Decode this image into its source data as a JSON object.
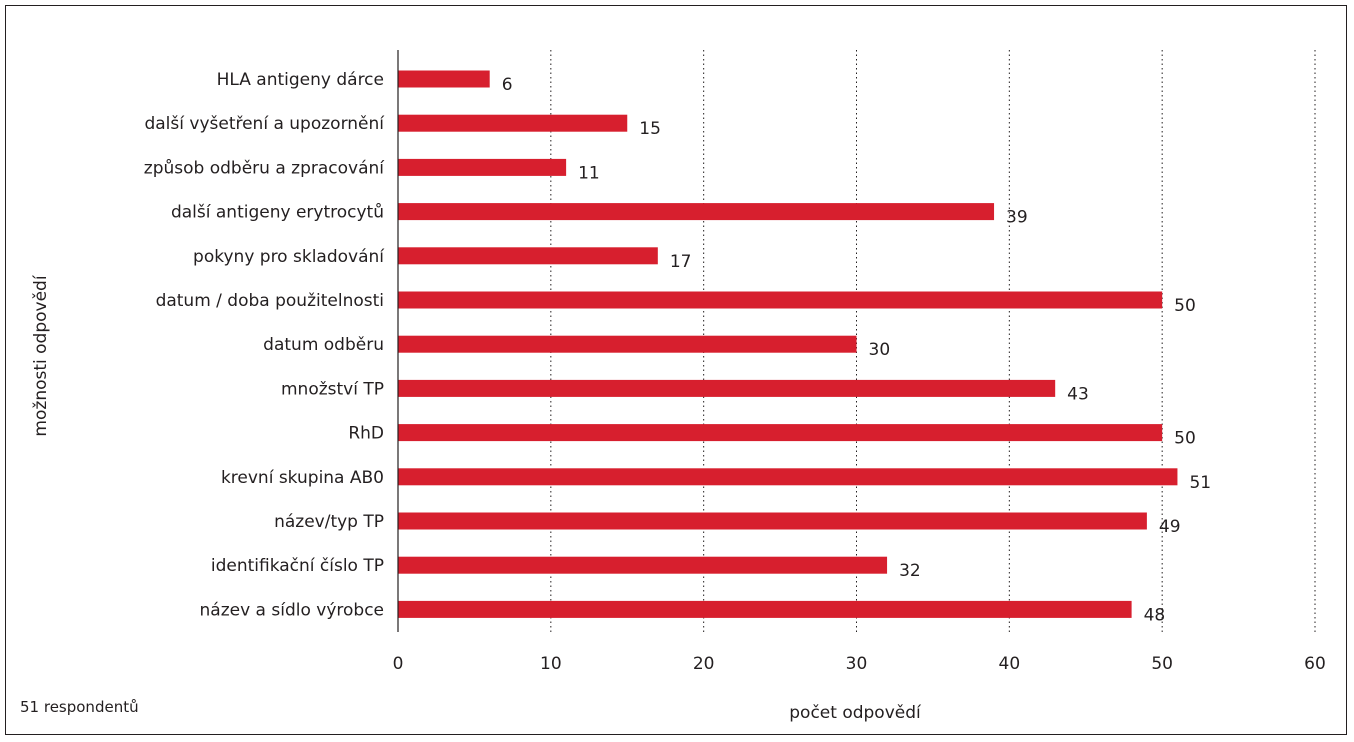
{
  "chart_data": {
    "type": "bar",
    "orientation": "horizontal",
    "categories": [
      "HLA antigeny dárce",
      "další vyšetření a upozornění",
      "způsob odběru a zpracování",
      "další antigeny erytrocytů",
      "pokyny pro skladování",
      "datum / doba použitelnosti",
      "datum odběru",
      "množství TP",
      "RhD",
      "krevní skupina AB0",
      "název/typ TP",
      "identifikační číslo TP",
      "název a sídlo výrobce"
    ],
    "values": [
      6,
      15,
      11,
      39,
      17,
      50,
      30,
      43,
      50,
      51,
      49,
      32,
      48
    ],
    "xlabel": "počet odpovědí",
    "ylabel": "možnosti odpovědí",
    "xlim": [
      0,
      60
    ],
    "xticks": [
      0,
      10,
      20,
      30,
      40,
      50,
      60
    ],
    "grid": "vertical dotted",
    "bar_color": "#d71f2e",
    "note": "51 respondentů"
  }
}
